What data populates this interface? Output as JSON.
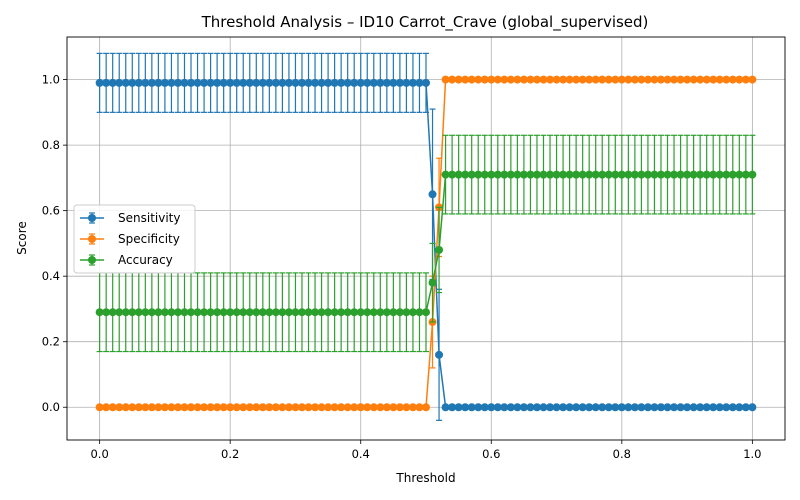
{
  "chart_data": {
    "type": "line",
    "title": "Threshold Analysis – ID10 Carrot_Crave (global_supervised)",
    "xlabel": "Threshold",
    "ylabel": "Score",
    "xlim": [
      -0.05,
      1.05
    ],
    "ylim": [
      -0.1,
      1.13
    ],
    "xticks": [
      0.0,
      0.2,
      0.4,
      0.6,
      0.8,
      1.0
    ],
    "xtick_labels": [
      "0.0",
      "0.2",
      "0.4",
      "0.6",
      "0.8",
      "1.0"
    ],
    "yticks": [
      0.0,
      0.2,
      0.4,
      0.6,
      0.8,
      1.0
    ],
    "ytick_labels": [
      "0.0",
      "0.2",
      "0.4",
      "0.6",
      "0.8",
      "1.0"
    ],
    "grid": true,
    "legend_position": "center-left",
    "x": {
      "start": 0.0,
      "end": 1.0,
      "step": 0.01
    },
    "series": [
      {
        "name": "Sensitivity",
        "color": "#1f77b4",
        "error_bars": true,
        "segments": [
          {
            "from": 0.0,
            "to": 0.5,
            "value": 0.99,
            "error": 0.09
          },
          {
            "from": 0.51,
            "to": 0.51,
            "value": 0.65,
            "error": 0.26
          },
          {
            "from": 0.52,
            "to": 0.52,
            "value": 0.16,
            "error": 0.2
          },
          {
            "from": 0.53,
            "to": 1.0,
            "value": 0.0,
            "error": 0.0
          }
        ]
      },
      {
        "name": "Specificity",
        "color": "#ff7f0e",
        "error_bars": true,
        "segments": [
          {
            "from": 0.0,
            "to": 0.5,
            "value": 0.0,
            "error": 0.0
          },
          {
            "from": 0.51,
            "to": 0.51,
            "value": 0.26,
            "error": 0.14
          },
          {
            "from": 0.52,
            "to": 0.52,
            "value": 0.61,
            "error": 0.15
          },
          {
            "from": 0.53,
            "to": 1.0,
            "value": 1.0,
            "error": 0.0
          }
        ]
      },
      {
        "name": "Accuracy",
        "color": "#2ca02c",
        "error_bars": true,
        "segments": [
          {
            "from": 0.0,
            "to": 0.5,
            "value": 0.29,
            "error": 0.12
          },
          {
            "from": 0.51,
            "to": 0.51,
            "value": 0.38,
            "error": 0.12
          },
          {
            "from": 0.52,
            "to": 0.52,
            "value": 0.48,
            "error": 0.13
          },
          {
            "from": 0.53,
            "to": 1.0,
            "value": 0.71,
            "error": 0.12
          }
        ]
      }
    ]
  }
}
